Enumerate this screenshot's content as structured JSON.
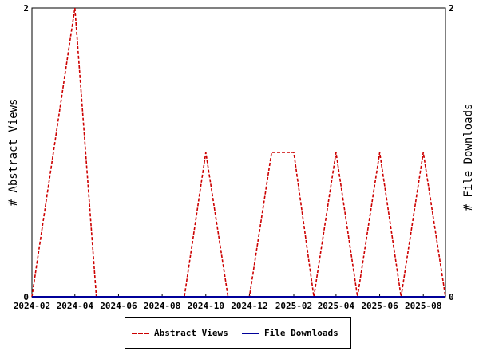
{
  "chart_data": {
    "type": "line",
    "x_ticks": [
      "2024-02",
      "2024-04",
      "2024-06",
      "2024-08",
      "2024-10",
      "2024-12",
      "2025-02",
      "2025-04",
      "2025-06",
      "2025-08"
    ],
    "x_range": [
      "2024-02-01",
      "2025-09-01"
    ],
    "y_left_label": "# Abstract Views",
    "y_right_label": "# File Downloads",
    "y_left_ticks": [
      "0",
      "2"
    ],
    "y_right_ticks": [
      "0",
      "2"
    ],
    "y_left_range": [
      0,
      2
    ],
    "y_right_range": [
      0,
      2
    ],
    "grid": false,
    "legend_position": "bottom",
    "series": [
      {
        "name": "Abstract Views",
        "color": "#cc0000",
        "style": "dashed",
        "axis": "left",
        "x": [
          "2024-02-01",
          "2024-04-01",
          "2024-05-01",
          "2024-09-01",
          "2024-10-01",
          "2024-11-01",
          "2024-12-01",
          "2025-01-01",
          "2025-02-01",
          "2025-03-01",
          "2025-04-01",
          "2025-05-01",
          "2025-06-01",
          "2025-07-01",
          "2025-08-01",
          "2025-09-01"
        ],
        "y": [
          0,
          2,
          0,
          0,
          1,
          0,
          0,
          1,
          1,
          0,
          1,
          0,
          1,
          0,
          1,
          0
        ]
      },
      {
        "name": "File Downloads",
        "color": "#000099",
        "style": "solid",
        "axis": "right",
        "x": [
          "2024-02-01",
          "2025-09-01"
        ],
        "y": [
          0,
          0
        ]
      }
    ]
  }
}
